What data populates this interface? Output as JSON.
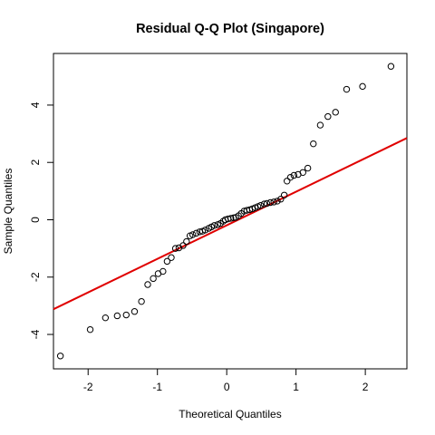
{
  "chart_data": {
    "type": "scatter",
    "title": "Residual Q-Q Plot (Singapore)",
    "xlabel": "Theoretical Quantiles",
    "ylabel": "Sample Quantiles",
    "xlim": [
      -2.5,
      2.6
    ],
    "ylim": [
      -5.2,
      5.8
    ],
    "x_ticks": [
      -2,
      -1,
      0,
      1,
      2
    ],
    "y_ticks": [
      -4,
      -2,
      0,
      2,
      4
    ],
    "grid": false,
    "marker": "open-circle",
    "point_color": "#000000",
    "reference_line": {
      "color": "#e00000",
      "points": [
        [
          -2.5,
          -3.12
        ],
        [
          2.6,
          2.85
        ]
      ]
    },
    "points": [
      [
        -2.4,
        -4.75
      ],
      [
        -1.97,
        -3.83
      ],
      [
        -1.75,
        -3.42
      ],
      [
        -1.58,
        -3.35
      ],
      [
        -1.45,
        -3.32
      ],
      [
        -1.33,
        -3.2
      ],
      [
        -1.23,
        -2.85
      ],
      [
        -1.14,
        -2.26
      ],
      [
        -1.06,
        -2.05
      ],
      [
        -0.99,
        -1.88
      ],
      [
        -0.92,
        -1.8
      ],
      [
        -0.86,
        -1.45
      ],
      [
        -0.8,
        -1.32
      ],
      [
        -0.74,
        -1.0
      ],
      [
        -0.69,
        -0.98
      ],
      [
        -0.63,
        -0.9
      ],
      [
        -0.58,
        -0.76
      ],
      [
        -0.53,
        -0.56
      ],
      [
        -0.49,
        -0.52
      ],
      [
        -0.44,
        -0.47
      ],
      [
        -0.39,
        -0.42
      ],
      [
        -0.35,
        -0.4
      ],
      [
        -0.31,
        -0.36
      ],
      [
        -0.26,
        -0.3
      ],
      [
        -0.22,
        -0.25
      ],
      [
        -0.18,
        -0.2
      ],
      [
        -0.13,
        -0.17
      ],
      [
        -0.09,
        -0.13
      ],
      [
        -0.05,
        -0.05
      ],
      [
        -0.02,
        0.0
      ],
      [
        0.02,
        0.03
      ],
      [
        0.06,
        0.05
      ],
      [
        0.1,
        0.07
      ],
      [
        0.13,
        0.08
      ],
      [
        0.17,
        0.14
      ],
      [
        0.21,
        0.22
      ],
      [
        0.25,
        0.3
      ],
      [
        0.29,
        0.33
      ],
      [
        0.33,
        0.35
      ],
      [
        0.37,
        0.38
      ],
      [
        0.41,
        0.42
      ],
      [
        0.45,
        0.46
      ],
      [
        0.49,
        0.5
      ],
      [
        0.54,
        0.55
      ],
      [
        0.58,
        0.57
      ],
      [
        0.63,
        0.6
      ],
      [
        0.68,
        0.62
      ],
      [
        0.73,
        0.65
      ],
      [
        0.78,
        0.72
      ],
      [
        0.83,
        0.86
      ],
      [
        0.87,
        1.35
      ],
      [
        0.92,
        1.48
      ],
      [
        0.97,
        1.55
      ],
      [
        1.03,
        1.58
      ],
      [
        1.1,
        1.65
      ],
      [
        1.17,
        1.8
      ],
      [
        1.25,
        2.65
      ],
      [
        1.35,
        3.3
      ],
      [
        1.46,
        3.6
      ],
      [
        1.57,
        3.75
      ],
      [
        1.73,
        4.55
      ],
      [
        1.96,
        4.65
      ],
      [
        2.37,
        5.35
      ]
    ]
  }
}
